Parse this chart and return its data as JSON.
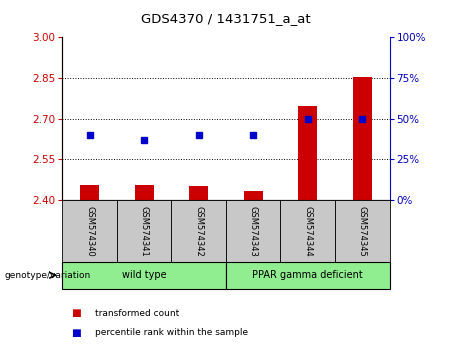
{
  "title": "GDS4370 / 1431751_a_at",
  "samples": [
    "GSM574340",
    "GSM574341",
    "GSM574342",
    "GSM574343",
    "GSM574344",
    "GSM574345"
  ],
  "transformed_counts": [
    2.455,
    2.455,
    2.452,
    2.435,
    2.745,
    2.855
  ],
  "percentile_ranks": [
    40,
    37,
    40,
    40,
    50,
    50
  ],
  "bar_color": "#cc0000",
  "dot_color": "#0000cc",
  "ylim_left": [
    2.4,
    3.0
  ],
  "ylim_right": [
    0,
    100
  ],
  "yticks_left": [
    2.4,
    2.55,
    2.7,
    2.85,
    3.0
  ],
  "yticks_right": [
    0,
    25,
    50,
    75,
    100
  ],
  "grid_lines": [
    2.55,
    2.7,
    2.85
  ],
  "axis_label_color_left": "#cc0000",
  "axis_label_color_right": "#0000bb",
  "background_sample": "#c8c8c8",
  "background_group": "#90ee90",
  "group_defs": [
    {
      "start": 0,
      "end": 2,
      "label": "wild type"
    },
    {
      "start": 3,
      "end": 5,
      "label": "PPAR gamma deficient"
    }
  ],
  "legend_items": [
    {
      "label": "transformed count",
      "color": "#cc0000"
    },
    {
      "label": "percentile rank within the sample",
      "color": "#0000cc"
    }
  ]
}
